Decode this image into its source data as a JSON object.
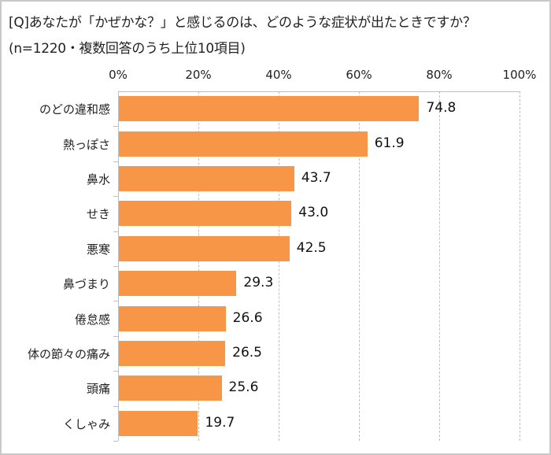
{
  "title": {
    "line1": "[Q]あなたが「かぜかな？」と感じるのは、どのような症状が出たときですか？",
    "line2": "(n=1220・複数回答のうち上位10項目)"
  },
  "colors": {
    "bar": "#f79646",
    "grid": "#bfbfbf",
    "frame": "#c8c8c8"
  },
  "axis": {
    "ticks": [
      "0%",
      "20%",
      "40%",
      "60%",
      "80%",
      "100%"
    ]
  },
  "chart_data": {
    "type": "bar",
    "orientation": "horizontal",
    "title": "[Q]あなたが「かぜかな？」と感じるのは、どのような症状が出たときですか？ (n=1220・複数回答のうち上位10項目)",
    "xlabel": "",
    "ylabel": "",
    "xlim": [
      0,
      100
    ],
    "x_tick_labels": [
      "0%",
      "20%",
      "40%",
      "60%",
      "80%",
      "100%"
    ],
    "grid": "vertical dashed",
    "legend": "none",
    "categories": [
      "のどの違和感",
      "熱っぽさ",
      "鼻水",
      "せき",
      "悪寒",
      "鼻づまり",
      "倦怠感",
      "体の節々の痛み",
      "頭痛",
      "くしゃみ"
    ],
    "values": [
      74.8,
      61.9,
      43.7,
      43.0,
      42.5,
      29.3,
      26.6,
      26.5,
      25.6,
      19.7
    ],
    "value_labels": [
      "74.8",
      "61.9",
      "43.7",
      "43.0",
      "42.5",
      "29.3",
      "26.6",
      "26.5",
      "25.6",
      "19.7"
    ],
    "unit": "%"
  }
}
